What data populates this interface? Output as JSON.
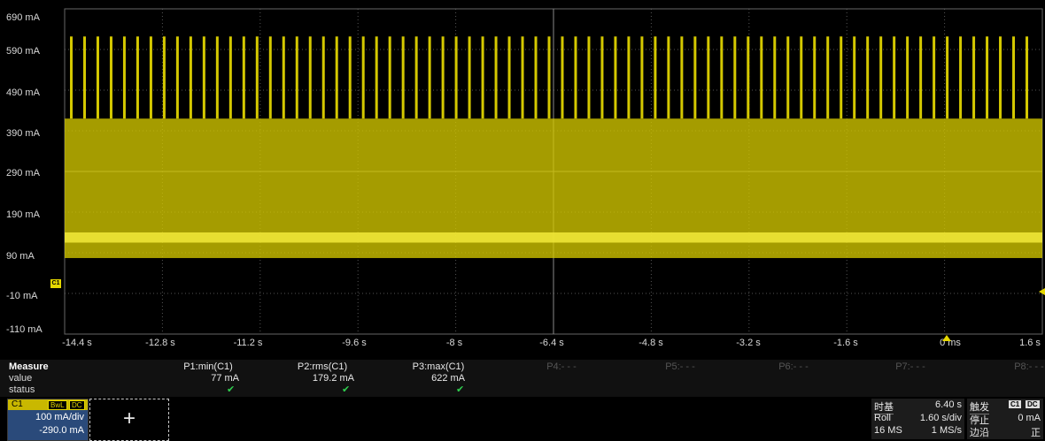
{
  "plot": {
    "trace_color": "#d4c800",
    "grid_color": "#555555",
    "y_tick_labels": [
      "690 mA",
      "590 mA",
      "490 mA",
      "390 mA",
      "290 mA",
      "190 mA",
      "90 mA",
      "-10 mA",
      "-110 mA"
    ],
    "x_tick_labels": [
      "-14.4 s",
      "-12.8 s",
      "-11.2 s",
      "-9.6 s",
      "-8 s",
      "-6.4 s",
      "-4.8 s",
      "-3.2 s",
      "-1.6 s",
      "0 ms",
      "1.6 s"
    ],
    "channel_marker": "C1"
  },
  "chart_data": {
    "type": "line",
    "title": "",
    "xlabel": "",
    "ylabel": "",
    "xlim": [
      -14.4,
      1.6
    ],
    "ylim": [
      -110,
      690
    ],
    "x_unit": "s",
    "y_unit": "mA",
    "series": [
      {
        "description": "current waveform (roll mode)",
        "envelope_band_mA": [
          77,
          420
        ],
        "bright_level_mA": [
          115,
          140
        ],
        "periodic_spikes_peak_mA": 622,
        "spike_count_visible": 73
      }
    ]
  },
  "measure": {
    "title": "Measure",
    "row_value": "value",
    "row_status": "status",
    "params": [
      {
        "label": "P1:min(C1)",
        "value": "77 mA",
        "status": "✔",
        "active": true
      },
      {
        "label": "P2:rms(C1)",
        "value": "179.2 mA",
        "status": "✔",
        "active": true
      },
      {
        "label": "P3:max(C1)",
        "value": "622 mA",
        "status": "✔",
        "active": true
      },
      {
        "label": "P4:- - -",
        "value": "",
        "status": "",
        "active": false
      },
      {
        "label": "P5:- - -",
        "value": "",
        "status": "",
        "active": false
      },
      {
        "label": "P6:- - -",
        "value": "",
        "status": "",
        "active": false
      },
      {
        "label": "P7:- - -",
        "value": "",
        "status": "",
        "active": false
      },
      {
        "label": "P8:- - -",
        "value": "",
        "status": "",
        "active": false
      }
    ]
  },
  "channel": {
    "name": "C1",
    "bw_badge": "BwL",
    "coupling_badge": "DC",
    "scale": "100 mA/div",
    "offset": "-290.0 mA"
  },
  "add_button": {
    "label": "+"
  },
  "timebase": {
    "title": "时基",
    "delay": "6.40 s",
    "mode": "Roll",
    "scale": "1.60 s/div",
    "samples": "16 MS",
    "rate": "1 MS/s"
  },
  "trigger": {
    "title": "触发",
    "source_badge": "C1",
    "coupling_badge": "DC",
    "state": "停止",
    "level": "0 mA",
    "type": "边沿",
    "slope": "正"
  }
}
